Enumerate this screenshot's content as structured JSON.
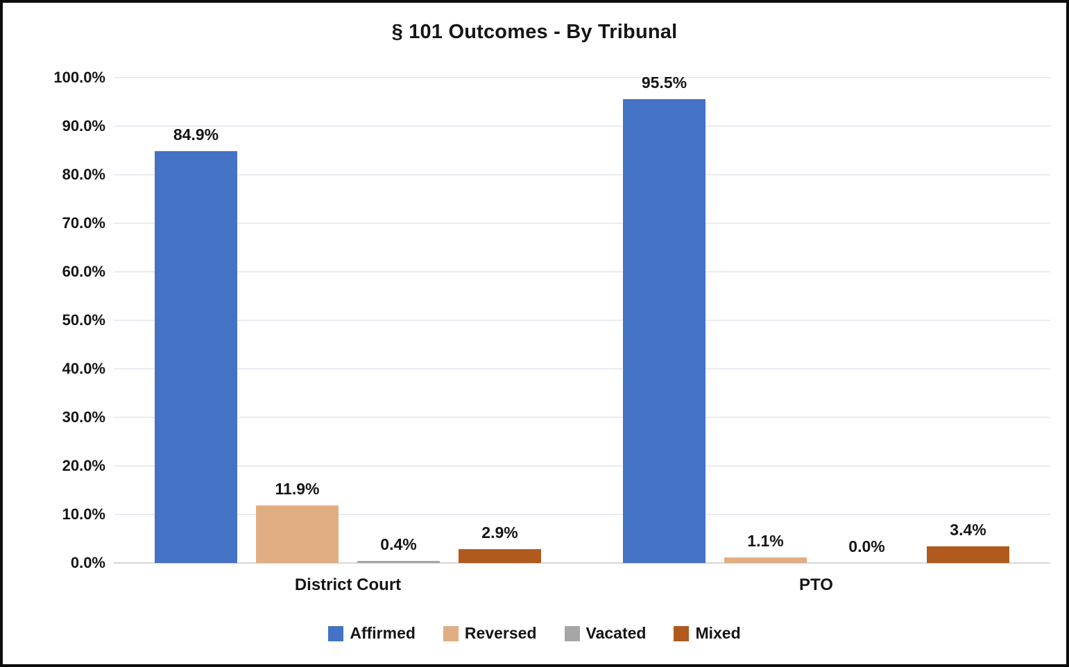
{
  "title": "§ 101 Outcomes - By Tribunal",
  "chart_data": {
    "type": "bar",
    "title": "§ 101 Outcomes - By Tribunal",
    "categories": [
      "District Court",
      "PTO"
    ],
    "series": [
      {
        "name": "Affirmed",
        "color": "#4472C4",
        "values": [
          84.9,
          95.5
        ],
        "labels": [
          "84.9%",
          "95.5%"
        ]
      },
      {
        "name": "Reversed",
        "color": "#E1AD83",
        "values": [
          11.9,
          1.1
        ],
        "labels": [
          "11.9%",
          "1.1%"
        ]
      },
      {
        "name": "Vacated",
        "color": "#A6A6A6",
        "values": [
          0.4,
          0.0
        ],
        "labels": [
          "0.4%",
          "0.0%"
        ]
      },
      {
        "name": "Mixed",
        "color": "#B05A1D",
        "values": [
          2.9,
          3.4
        ],
        "labels": [
          "2.9%",
          "3.4%"
        ]
      }
    ],
    "y_axis": {
      "ticks": [
        "0.0%",
        "10.0%",
        "20.0%",
        "30.0%",
        "40.0%",
        "50.0%",
        "60.0%",
        "70.0%",
        "80.0%",
        "90.0%",
        "100.0%"
      ],
      "min": 0,
      "max": 100
    },
    "ylim": [
      0,
      100
    ],
    "grid": true,
    "legend_position": "bottom",
    "colors": {
      "gridline": "#E8ECF2",
      "baseline": "#D4D7DC",
      "text": "#151515",
      "frame_border": "#0D0D0D",
      "background": "#FFFFFF"
    }
  }
}
